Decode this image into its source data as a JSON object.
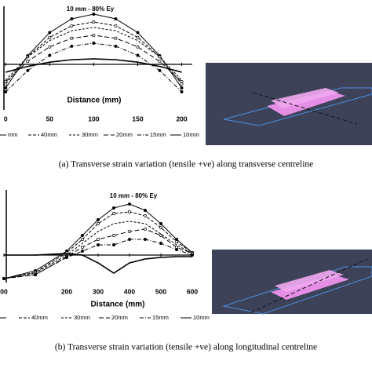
{
  "chart_data": [
    {
      "type": "line",
      "title": "10 mm - 80% Ey",
      "x_label": "Distance (mm)",
      "x": [
        0,
        25,
        50,
        75,
        100,
        125,
        150,
        175,
        200
      ],
      "xlim": [
        -2,
        212
      ],
      "xticks": [
        0,
        50,
        100,
        150,
        200
      ],
      "ylim": [
        -5.8,
        7.4
      ],
      "series": [
        {
          "name": "mm",
          "color": "#000000",
          "dash": "1 0",
          "values": [
            -3,
            1.1,
            4.05,
            5.8,
            6.4,
            5.8,
            4.05,
            1.1,
            -3
          ]
        },
        {
          "name": "40mm",
          "color": "#000000",
          "dash": "4 2",
          "values": [
            -2.5,
            0.96,
            3.43,
            4.91,
            5.4,
            4.91,
            3.43,
            0.96,
            -2.5
          ]
        },
        {
          "name": "30mm",
          "color": "#000000",
          "dash": "3 2",
          "values": [
            -2,
            0.93,
            3.03,
            4.28,
            4.7,
            4.28,
            3.03,
            0.93,
            -2
          ]
        },
        {
          "name": "20mm",
          "color": "#000000",
          "dash": "6 3",
          "values": [
            -2.2,
            0.38,
            2.23,
            3.33,
            3.7,
            3.33,
            2.23,
            0.38,
            -2.2
          ]
        },
        {
          "name": "15mm",
          "color": "#000000",
          "dash": "5 2 1 2",
          "values": [
            -3.5,
            -0.79,
            1.15,
            2.31,
            2.7,
            2.31,
            1.15,
            -0.79,
            -3.5
          ]
        },
        {
          "name": "10mm",
          "color": "#000000",
          "dash": "1 0",
          "values": [
            -1,
            -0.26,
            0.28,
            0.59,
            0.7,
            0.59,
            0.28,
            -0.26,
            -1
          ]
        }
      ]
    },
    {
      "type": "line",
      "title": "10 mm - 80% Ey",
      "x_label": "Distance (mm)",
      "x": [
        0,
        100,
        200,
        250,
        300,
        350,
        400,
        450,
        500,
        550,
        600
      ],
      "xlim": [
        0,
        600
      ],
      "xticks": [
        {
          "value": 0,
          "label": "00"
        },
        200,
        300,
        400,
        500,
        600
      ],
      "ylim": [
        -3.5,
        8.3
      ],
      "series": [
        {
          "name": null,
          "color": "#000000",
          "dash": "1 0",
          "values": [
            -3,
            -2,
            0.5,
            2.5,
            4.5,
            6,
            6.5,
            5.7,
            4,
            2,
            0.3
          ]
        },
        {
          "name": "40mm",
          "color": "#000000",
          "dash": "4 2",
          "values": [
            -3,
            -2.2,
            0.3,
            2,
            4,
            5.3,
            5.5,
            5,
            3.5,
            1.7,
            0.3
          ]
        },
        {
          "name": "30mm",
          "color": "#000000",
          "dash": "3 2",
          "values": [
            -3,
            -2.3,
            0,
            1.5,
            3,
            4,
            4.3,
            4,
            2.7,
            1.3,
            0.2
          ]
        },
        {
          "name": "20mm",
          "color": "#000000",
          "dash": "6 3",
          "values": [
            -3,
            -2.5,
            -0.2,
            1,
            2,
            2.5,
            3,
            3.3,
            2.5,
            1,
            0.2
          ]
        },
        {
          "name": "15mm",
          "color": "#000000",
          "dash": "5 2 1 2",
          "values": [
            -3,
            -2.5,
            -0.3,
            0.5,
            1.3,
            1.3,
            2,
            2,
            1.5,
            0.7,
            0
          ]
        },
        {
          "name": "10mm",
          "color": "#000000",
          "dash": "1 0",
          "values": [
            0,
            0,
            0.2,
            0,
            -1,
            -2.3,
            -1,
            -0.5,
            -0.3,
            -0.2,
            -0.2
          ]
        }
      ]
    }
  ],
  "figure": {
    "captions": [
      "(a)  Transverse strain variation (tensile +ve) along transverse centreline",
      "(b)  Transverse strain variation (tensile +ve) along longitudinal centreline"
    ]
  }
}
